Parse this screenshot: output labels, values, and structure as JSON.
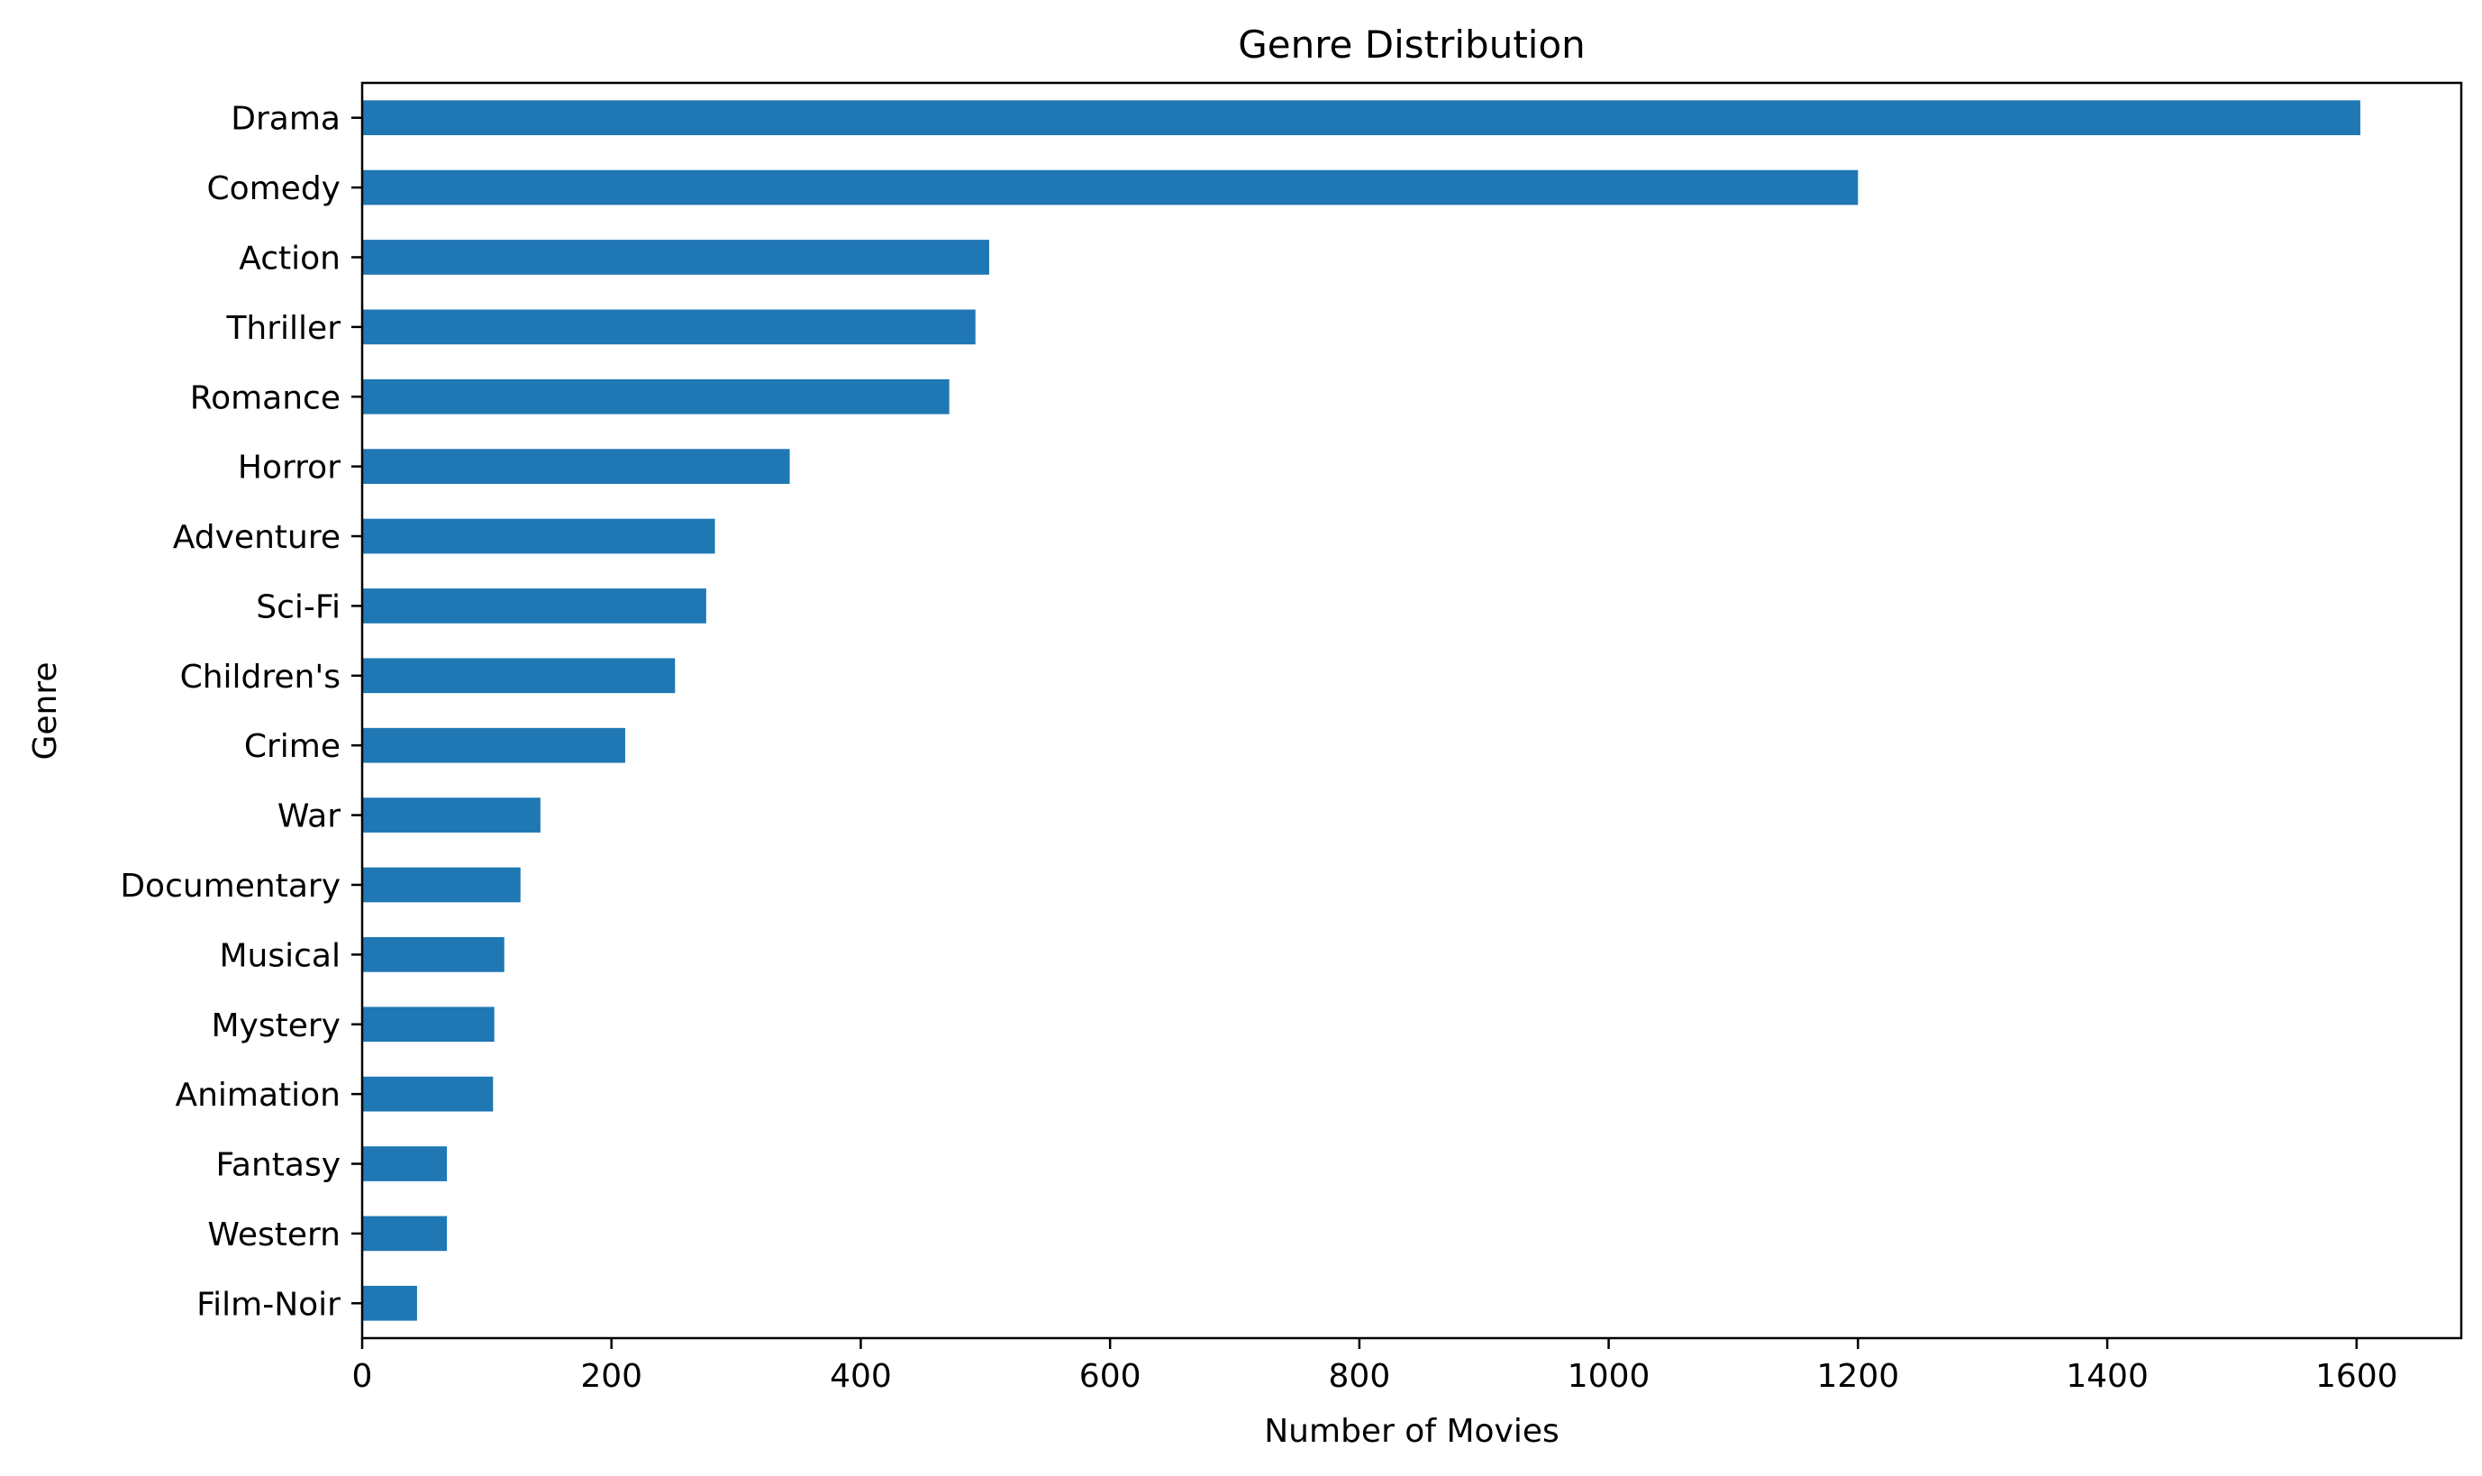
{
  "chart_data": {
    "type": "bar",
    "orientation": "horizontal",
    "title": "Genre Distribution",
    "xlabel": "Number of Movies",
    "ylabel": "Genre",
    "xlim": [
      0,
      1684
    ],
    "xticks": [
      0,
      200,
      400,
      600,
      800,
      1000,
      1200,
      1400,
      1600
    ],
    "grid": false,
    "bar_color": "#1f77b4",
    "categories": [
      "Drama",
      "Comedy",
      "Action",
      "Thriller",
      "Romance",
      "Horror",
      "Adventure",
      "Sci-Fi",
      "Children's",
      "Crime",
      "War",
      "Documentary",
      "Musical",
      "Mystery",
      "Animation",
      "Fantasy",
      "Western",
      "Film-Noir"
    ],
    "values": [
      1603,
      1200,
      503,
      492,
      471,
      343,
      283,
      276,
      251,
      211,
      143,
      127,
      114,
      106,
      105,
      68,
      68,
      44
    ]
  }
}
